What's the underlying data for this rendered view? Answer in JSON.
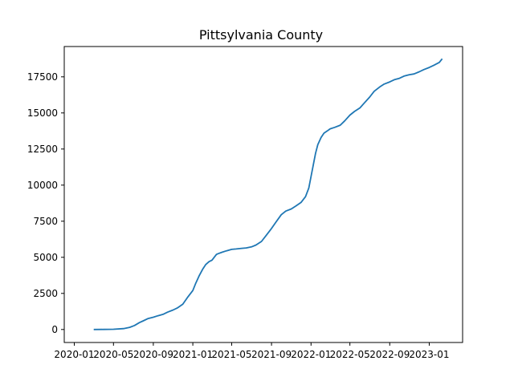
{
  "chart_data": {
    "type": "line",
    "title": "Pittsylvania County",
    "xlabel": "",
    "ylabel": "",
    "x_ticks": [
      "2020-01",
      "2020-05",
      "2020-09",
      "2021-01",
      "2021-05",
      "2021-09",
      "2022-01",
      "2022-05",
      "2022-09",
      "2023-01"
    ],
    "y_ticks": [
      "0",
      "2500",
      "5000",
      "7500",
      "10000",
      "12500",
      "15000",
      "17500"
    ],
    "xlim": [
      "2019-12-01",
      "2023-04-14"
    ],
    "ylim": [
      -900,
      19600
    ],
    "grid": false,
    "color": "#1f77b4",
    "series": [
      {
        "x": [
          "2020-03-01",
          "2020-04-01",
          "2020-05-01",
          "2020-06-01",
          "2020-06-20",
          "2020-07-05",
          "2020-07-20",
          "2020-08-01",
          "2020-08-15",
          "2020-09-01",
          "2020-09-15",
          "2020-10-01",
          "2020-10-15",
          "2020-11-01",
          "2020-11-15",
          "2020-12-01",
          "2020-12-15",
          "2021-01-01",
          "2021-01-10",
          "2021-01-20",
          "2021-02-01",
          "2021-02-10",
          "2021-02-20",
          "2021-03-01",
          "2021-03-15",
          "2021-03-20",
          "2021-04-01",
          "2021-04-15",
          "2021-05-01",
          "2021-05-15",
          "2021-06-01",
          "2021-06-15",
          "2021-07-01",
          "2021-07-15",
          "2021-08-01",
          "2021-08-15",
          "2021-09-01",
          "2021-09-15",
          "2021-10-01",
          "2021-10-15",
          "2021-11-01",
          "2021-11-15",
          "2021-12-01",
          "2021-12-15",
          "2021-12-25",
          "2022-01-01",
          "2022-01-08",
          "2022-01-15",
          "2022-01-22",
          "2022-02-01",
          "2022-02-10",
          "2022-02-20",
          "2022-03-01",
          "2022-03-15",
          "2022-04-01",
          "2022-04-15",
          "2022-05-01",
          "2022-05-15",
          "2022-06-01",
          "2022-06-15",
          "2022-07-01",
          "2022-07-15",
          "2022-08-01",
          "2022-08-15",
          "2022-09-01",
          "2022-09-15",
          "2022-10-01",
          "2022-10-15",
          "2022-11-01",
          "2022-11-15",
          "2022-12-01",
          "2022-12-15",
          "2023-01-01",
          "2023-01-15",
          "2023-02-01",
          "2023-02-10"
        ],
        "y": [
          0,
          5,
          15,
          60,
          150,
          280,
          480,
          600,
          750,
          850,
          950,
          1050,
          1200,
          1350,
          1500,
          1750,
          2200,
          2700,
          3200,
          3700,
          4200,
          4500,
          4700,
          4800,
          5200,
          5250,
          5350,
          5450,
          5550,
          5580,
          5620,
          5650,
          5720,
          5850,
          6100,
          6500,
          7000,
          7450,
          7950,
          8200,
          8350,
          8550,
          8800,
          9200,
          9800,
          10600,
          11400,
          12200,
          12800,
          13300,
          13600,
          13750,
          13900,
          14000,
          14150,
          14450,
          14850,
          15100,
          15350,
          15700,
          16100,
          16500,
          16800,
          17000,
          17150,
          17300,
          17400,
          17550,
          17650,
          17700,
          17850,
          18000,
          18150,
          18300,
          18500,
          18750
        ]
      }
    ]
  }
}
